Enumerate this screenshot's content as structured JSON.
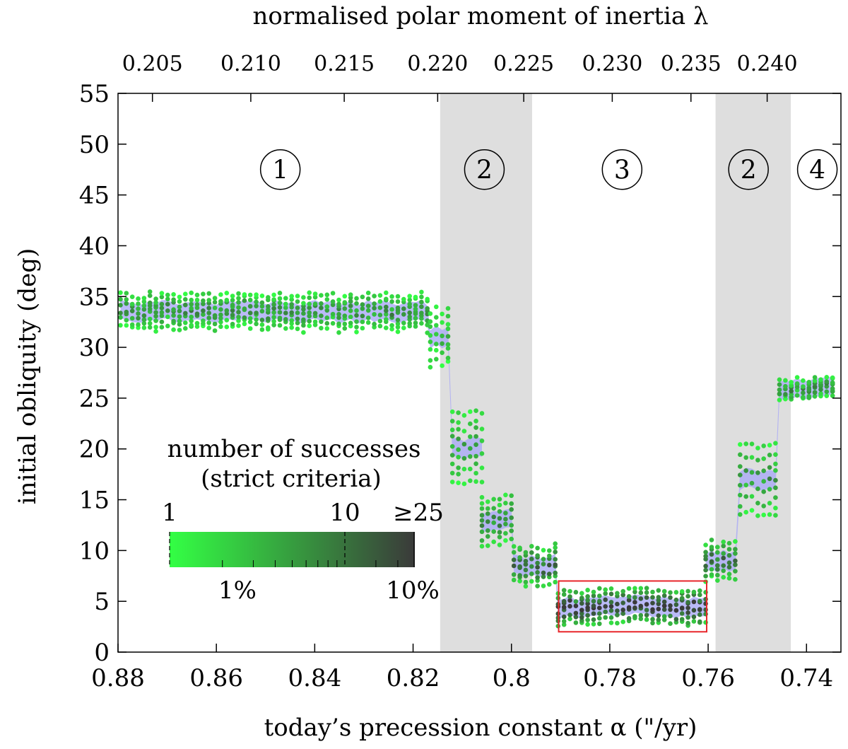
{
  "chart_data": {
    "type": "scatter",
    "xlabel": "today’s precession constant α (\"/yr)",
    "ylabel": "initial obliquity (deg)",
    "top_axis_label": "normalised polar moment of inertia λ",
    "xlim": [
      0.88,
      0.733
    ],
    "ylim": [
      0,
      55
    ],
    "x_ticks": [
      "0.88",
      "0.86",
      "0.84",
      "0.82",
      "0.8",
      "0.78",
      "0.76",
      "0.74"
    ],
    "y_ticks": [
      "0",
      "5",
      "10",
      "15",
      "20",
      "25",
      "30",
      "35",
      "40",
      "45",
      "50",
      "55"
    ],
    "top_ticks": [
      {
        "label": "0.205",
        "x": 0.873
      },
      {
        "label": "0.210",
        "x": 0.853
      },
      {
        "label": "0.215",
        "x": 0.834
      },
      {
        "label": "0.220",
        "x": 0.815
      },
      {
        "label": "0.225",
        "x": 0.7975
      },
      {
        "label": "0.230",
        "x": 0.7795
      },
      {
        "label": "0.235",
        "x": 0.7635
      },
      {
        "label": "0.240",
        "x": 0.748
      }
    ],
    "shaded_regions": [
      {
        "x_from": 0.8145,
        "x_to": 0.7958
      },
      {
        "x_from": 0.7585,
        "x_to": 0.7432
      }
    ],
    "region_labels": [
      {
        "label": "1",
        "x": 0.847,
        "y": 47.5
      },
      {
        "label": "2",
        "x": 0.8055,
        "y": 47.5
      },
      {
        "label": "3",
        "x": 0.7775,
        "y": 47.5
      },
      {
        "label": "2",
        "x": 0.7518,
        "y": 47.5
      },
      {
        "label": "4",
        "x": 0.7378,
        "y": 47.5
      }
    ],
    "highlight_box": {
      "x_from": 0.7904,
      "x_to": 0.7603,
      "y_from": 2,
      "y_to": 7
    },
    "series": [
      {
        "name": "number of successes (strict criteria)",
        "bands": [
          {
            "x_from": 0.8795,
            "x_to": 0.8165,
            "y_center": 33.5,
            "half_height": 1.8,
            "color_level": 0.45
          },
          {
            "x_from": 0.8165,
            "x_to": 0.812,
            "y_center": 31,
            "half_height": 3,
            "color_level": 0.3
          },
          {
            "x_from": 0.812,
            "x_to": 0.806,
            "y_center": 20,
            "half_height": 4,
            "color_level": 0.35
          },
          {
            "x_from": 0.806,
            "x_to": 0.7995,
            "y_center": 13,
            "half_height": 2.5,
            "color_level": 0.5
          },
          {
            "x_from": 0.7995,
            "x_to": 0.7905,
            "y_center": 8.5,
            "half_height": 2,
            "color_level": 0.65
          },
          {
            "x_from": 0.7905,
            "x_to": 0.7605,
            "y_center": 4.5,
            "half_height": 1.8,
            "color_level": 0.85
          },
          {
            "x_from": 0.7605,
            "x_to": 0.7535,
            "y_center": 9,
            "half_height": 2,
            "color_level": 0.6
          },
          {
            "x_from": 0.7535,
            "x_to": 0.7455,
            "y_center": 17,
            "half_height": 4,
            "color_level": 0.4
          },
          {
            "x_from": 0.7455,
            "x_to": 0.734,
            "y_center": 26,
            "half_height": 1,
            "color_level": 0.5
          }
        ]
      }
    ],
    "legend": {
      "title_line1": "number of successes",
      "title_line2": "(strict criteria)",
      "top_labels": [
        "1",
        "10",
        "≥25"
      ],
      "bottom_labels": [
        "1%",
        "10%"
      ],
      "color_start": "#33ff44",
      "color_end": "#3a3a3a"
    },
    "mean_curve_color": "#a9a9f5",
    "shade_color": "#dedede",
    "box_color": "#e8262b"
  }
}
